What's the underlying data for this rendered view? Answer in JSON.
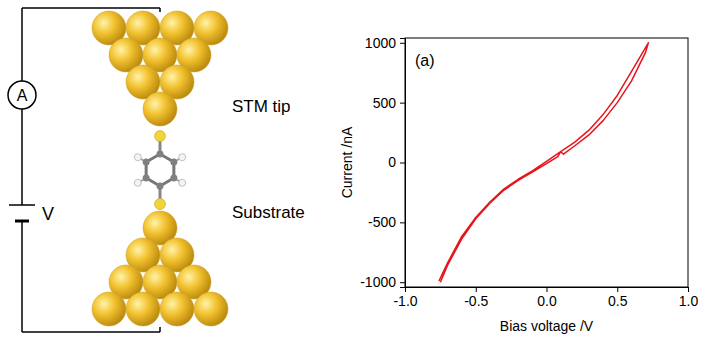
{
  "diagram": {
    "ammeter": "A",
    "voltage": "V",
    "tip_label": "STM tip",
    "substrate_label": "Substrate"
  },
  "chart_data": {
    "type": "line",
    "annotations": [
      "(a)"
    ],
    "x_label": "Bias voltage /V",
    "y_label": "Current /nA",
    "color": "#e8141b",
    "x": [
      -0.75,
      -0.7,
      -0.6,
      -0.5,
      -0.4,
      -0.3,
      -0.2,
      -0.1,
      0.0,
      0.08,
      0.1,
      0.12,
      0.2,
      0.3,
      0.4,
      0.5,
      0.6,
      0.7,
      0.72,
      0.7,
      0.6,
      0.5,
      0.4,
      0.3,
      0.2,
      0.1,
      0.0,
      -0.1,
      -0.2,
      -0.3,
      -0.4,
      -0.5,
      -0.6,
      -0.7,
      -0.76
    ],
    "values": [
      -1000,
      -860,
      -640,
      -470,
      -340,
      -230,
      -150,
      -80,
      -10,
      50,
      90,
      70,
      140,
      230,
      350,
      500,
      680,
      920,
      1000,
      960,
      760,
      560,
      400,
      270,
      170,
      90,
      10,
      -70,
      -140,
      -220,
      -330,
      -460,
      -620,
      -840,
      -990
    ],
    "xlim": [
      -1.0,
      1.0
    ],
    "xticks": [
      {
        "value": -1.0,
        "label": "-1.0"
      },
      {
        "value": -0.5,
        "label": "-0.5"
      },
      {
        "value": 0.0,
        "label": "0.0"
      },
      {
        "value": 0.5,
        "label": "0.5"
      },
      {
        "value": 1.0,
        "label": "1.0"
      }
    ],
    "ylim": [
      -1040,
      1040
    ],
    "yticks": [
      -1000,
      -500,
      0,
      500,
      1000
    ],
    "grid": false
  }
}
